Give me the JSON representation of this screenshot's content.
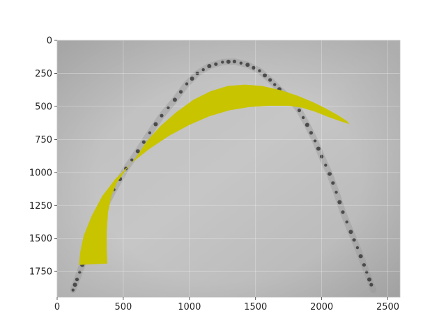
{
  "chart_data": {
    "type": "heatmap",
    "title": "",
    "xlabel": "",
    "ylabel": "",
    "xlim": [
      0,
      2592
    ],
    "ylim": [
      1944,
      0
    ],
    "y_inverted": true,
    "x_ticks": [
      0,
      500,
      1000,
      1500,
      2000,
      2500
    ],
    "y_ticks": [
      0,
      250,
      500,
      750,
      1000,
      1250,
      1500,
      1750
    ],
    "grid": true,
    "background_image": "grayscale photograph of an arch-shaped dental arch with a row of dark dots (teeth/markers) along the arch",
    "marker_path": [
      [
        120,
        1890
      ],
      [
        150,
        1810
      ],
      [
        190,
        1700
      ],
      [
        230,
        1560
      ],
      [
        290,
        1420
      ],
      [
        350,
        1280
      ],
      [
        430,
        1130
      ],
      [
        520,
        970
      ],
      [
        610,
        840
      ],
      [
        700,
        700
      ],
      [
        790,
        570
      ],
      [
        890,
        450
      ],
      [
        980,
        330
      ],
      [
        1060,
        250
      ],
      [
        1150,
        195
      ],
      [
        1250,
        165
      ],
      [
        1340,
        160
      ],
      [
        1440,
        185
      ],
      [
        1530,
        230
      ],
      [
        1610,
        300
      ],
      [
        1680,
        370
      ],
      [
        1760,
        440
      ],
      [
        1830,
        530
      ],
      [
        1890,
        640
      ],
      [
        1950,
        760
      ],
      [
        2000,
        880
      ],
      [
        2060,
        1010
      ],
      [
        2110,
        1150
      ],
      [
        2160,
        1300
      ],
      [
        2220,
        1450
      ],
      [
        2270,
        1570
      ],
      [
        2320,
        1700
      ],
      [
        2360,
        1810
      ],
      [
        2390,
        1890
      ]
    ],
    "overlay": {
      "color": "#c8c400",
      "polygon": [
        [
          165,
          1700
        ],
        [
          175,
          1600
        ],
        [
          200,
          1480
        ],
        [
          260,
          1330
        ],
        [
          340,
          1180
        ],
        [
          440,
          1050
        ],
        [
          560,
          930
        ],
        [
          700,
          820
        ],
        [
          850,
          720
        ],
        [
          1000,
          640
        ],
        [
          1150,
          575
        ],
        [
          1300,
          530
        ],
        [
          1450,
          505
        ],
        [
          1600,
          495
        ],
        [
          1750,
          495
        ],
        [
          1850,
          510
        ],
        [
          1950,
          540
        ],
        [
          2050,
          580
        ],
        [
          2150,
          615
        ],
        [
          2210,
          635
        ],
        [
          2190,
          610
        ],
        [
          2120,
          565
        ],
        [
          2030,
          515
        ],
        [
          1940,
          470
        ],
        [
          1820,
          420
        ],
        [
          1700,
          380
        ],
        [
          1550,
          345
        ],
        [
          1420,
          335
        ],
        [
          1290,
          345
        ],
        [
          1160,
          385
        ],
        [
          1030,
          450
        ],
        [
          900,
          545
        ],
        [
          780,
          650
        ],
        [
          680,
          760
        ],
        [
          600,
          880
        ],
        [
          520,
          980
        ],
        [
          450,
          1080
        ],
        [
          410,
          1180
        ],
        [
          385,
          1300
        ],
        [
          375,
          1450
        ],
        [
          375,
          1590
        ],
        [
          380,
          1690
        ]
      ]
    }
  }
}
